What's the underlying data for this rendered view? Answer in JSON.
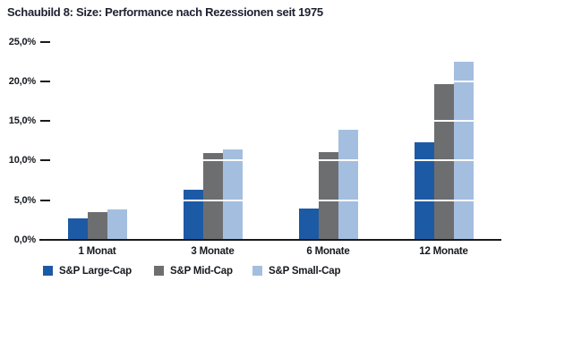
{
  "title": "Schaubild 8: Size: Performance nach Rezessionen seit 1975",
  "chart_data": {
    "type": "bar",
    "title": "Schaubild 8: Size: Performance nach Rezessionen seit 1975",
    "categories": [
      "1 Monat",
      "3 Monate",
      "6 Monate",
      "12 Monate"
    ],
    "series": [
      {
        "name": "S&P Large-Cap",
        "color": "#1D5AA5",
        "values": [
          2.7,
          6.3,
          4.0,
          12.3
        ]
      },
      {
        "name": "S&P Mid-Cap",
        "color": "#6D6E70",
        "values": [
          3.5,
          11.0,
          11.1,
          19.6
        ]
      },
      {
        "name": "S&P Small-Cap",
        "color": "#A4BEDF",
        "values": [
          3.8,
          11.4,
          13.9,
          22.5
        ]
      }
    ],
    "xlabel": "",
    "ylabel": "",
    "ylim": [
      0,
      25
    ],
    "ytick_step": 5,
    "ytick_labels": [
      "0,0%",
      "5,0%",
      "10,0%",
      "15,0%",
      "20,0%",
      "25,0%"
    ],
    "value_unit": "percent",
    "decimal_style": "german-comma",
    "grid": "white horizontal lines over bars at 5% steps",
    "legend_position": "bottom-left",
    "axis_color": "#1a1a1a",
    "background_color": "#ffffff"
  }
}
